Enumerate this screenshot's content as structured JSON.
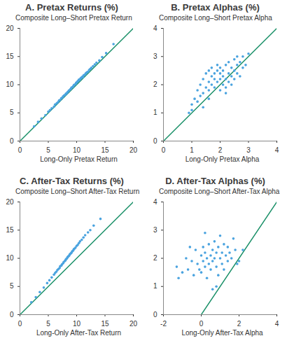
{
  "chart_data": [
    {
      "type": "scatter",
      "title": "A. Pretax Returns (%)",
      "ylabel": "Composite Long–Short Pretax Return",
      "xlabel": "Long-Only Pretax Return",
      "color": "#4aa3df",
      "xlim": [
        0,
        20
      ],
      "ylim": [
        0,
        20
      ],
      "xticks": [
        0,
        5,
        10,
        15,
        20
      ],
      "yticks": [
        0,
        5,
        10,
        15,
        20
      ],
      "x": [
        2.5,
        3.2,
        3.8,
        4.5,
        5.0,
        5.3,
        5.6,
        6.0,
        6.2,
        6.5,
        6.7,
        6.9,
        7.1,
        7.3,
        7.5,
        7.6,
        7.8,
        8.0,
        8.1,
        8.3,
        8.4,
        8.6,
        8.7,
        8.9,
        9.0,
        9.1,
        9.3,
        9.4,
        9.5,
        9.6,
        9.8,
        9.9,
        10.0,
        10.1,
        10.2,
        10.3,
        10.4,
        10.5,
        10.6,
        10.7,
        10.8,
        10.9,
        11.0,
        11.1,
        11.2,
        11.3,
        11.5,
        11.6,
        11.8,
        12.0,
        12.2,
        12.4,
        12.6,
        12.9,
        13.2,
        13.5,
        14.0,
        14.5,
        15.2,
        16.5
      ],
      "values": [
        2.6,
        3.4,
        4.0,
        4.6,
        5.2,
        5.5,
        5.8,
        6.1,
        6.5,
        6.7,
        6.9,
        7.2,
        7.3,
        7.6,
        7.7,
        7.9,
        8.1,
        8.2,
        8.4,
        8.5,
        8.7,
        8.9,
        9.0,
        9.2,
        9.3,
        9.5,
        9.6,
        9.7,
        9.9,
        10.0,
        10.1,
        10.3,
        10.4,
        10.5,
        10.6,
        10.7,
        10.9,
        10.8,
        11.0,
        11.1,
        11.2,
        11.3,
        11.4,
        11.3,
        11.6,
        11.7,
        11.8,
        12.0,
        12.2,
        12.3,
        12.6,
        12.8,
        13.0,
        13.3,
        13.6,
        13.9,
        14.3,
        14.9,
        15.6,
        17.2
      ]
    },
    {
      "type": "scatter",
      "title": "B. Pretax Alphas (%)",
      "ylabel": "Composite Long–Short Pretax Alpha",
      "xlabel": "Long-Only Pretax Alpha",
      "color": "#4aa3df",
      "xlim": [
        0,
        4
      ],
      "ylim": [
        0,
        4
      ],
      "xticks": [
        0,
        1,
        2,
        3,
        4
      ],
      "yticks": [
        0,
        1,
        2,
        3,
        4
      ],
      "x": [
        0.9,
        1.0,
        1.1,
        1.2,
        1.2,
        1.3,
        1.3,
        1.4,
        1.4,
        1.5,
        1.5,
        1.6,
        1.6,
        1.6,
        1.7,
        1.7,
        1.7,
        1.8,
        1.8,
        1.8,
        1.9,
        1.9,
        1.9,
        2.0,
        2.0,
        2.0,
        2.0,
        2.1,
        2.1,
        2.1,
        2.2,
        2.2,
        2.2,
        2.3,
        2.3,
        2.3,
        2.4,
        2.4,
        2.4,
        2.5,
        2.5,
        2.5,
        2.6,
        2.6,
        2.7,
        2.7,
        2.8,
        2.8,
        2.9,
        3.0,
        1.4,
        1.0,
        1.6,
        2.2,
        2.6
      ],
      "values": [
        1.0,
        1.3,
        1.5,
        1.4,
        1.8,
        1.6,
        2.0,
        1.7,
        2.2,
        1.9,
        2.4,
        1.8,
        2.1,
        2.5,
        2.0,
        2.3,
        2.6,
        1.9,
        2.2,
        2.4,
        2.1,
        2.5,
        2.7,
        1.8,
        2.2,
        2.4,
        2.6,
        2.0,
        2.3,
        2.5,
        1.9,
        2.2,
        2.7,
        2.1,
        2.4,
        2.8,
        2.0,
        2.3,
        2.6,
        2.2,
        2.5,
        2.9,
        2.4,
        2.7,
        2.3,
        2.8,
        2.6,
        3.0,
        2.7,
        3.1,
        1.2,
        1.1,
        1.5,
        1.7,
        3.0
      ]
    },
    {
      "type": "scatter",
      "title": "C. After-Tax Returns (%)",
      "ylabel": "Composite Long–Short After-Tax Return",
      "xlabel": "Long-Only After-Tax Return",
      "color": "#4aa3df",
      "xlim": [
        0,
        20
      ],
      "ylim": [
        0,
        20
      ],
      "xticks": [
        0,
        5,
        10,
        15,
        20
      ],
      "yticks": [
        0,
        5,
        10,
        15,
        20
      ],
      "x": [
        2.0,
        2.8,
        3.5,
        4.2,
        4.8,
        5.2,
        5.6,
        6.0,
        6.2,
        6.4,
        6.6,
        6.8,
        7.0,
        7.1,
        7.3,
        7.4,
        7.6,
        7.7,
        7.9,
        8.0,
        8.1,
        8.2,
        8.3,
        8.4,
        8.5,
        8.6,
        8.7,
        8.8,
        8.9,
        9.0,
        9.1,
        9.2,
        9.3,
        9.4,
        9.5,
        9.6,
        9.8,
        10.0,
        10.2,
        10.4,
        10.6,
        10.9,
        11.2,
        11.5,
        12.0,
        12.4,
        13.0,
        14.2
      ],
      "values": [
        2.2,
        3.1,
        4.0,
        4.8,
        5.6,
        6.1,
        6.6,
        7.1,
        7.4,
        7.6,
        7.9,
        8.1,
        8.3,
        8.6,
        8.7,
        8.9,
        9.1,
        9.3,
        9.5,
        9.6,
        9.8,
        9.9,
        10.0,
        10.2,
        10.3,
        10.4,
        10.5,
        10.7,
        10.8,
        10.9,
        11.0,
        11.2,
        11.3,
        11.4,
        11.6,
        11.7,
        11.9,
        12.2,
        12.4,
        12.7,
        13.0,
        13.3,
        13.7,
        14.1,
        14.6,
        15.0,
        15.8,
        17.0
      ]
    },
    {
      "type": "scatter",
      "title": "D. After-Tax Alphas (%)",
      "ylabel": "Composite Long–Short After-Tax Alpha",
      "xlabel": "Long-Only After-Tax Alpha",
      "color": "#4aa3df",
      "xlim": [
        -2,
        4
      ],
      "ylim": [
        0,
        4
      ],
      "xticks": [
        -2,
        0,
        2,
        4
      ],
      "yticks": [
        0,
        1,
        2,
        3,
        4
      ],
      "x": [
        -1.3,
        -1.2,
        -1.0,
        -0.8,
        -0.7,
        -0.5,
        -0.4,
        -0.3,
        -0.2,
        -0.1,
        0.0,
        0.0,
        0.1,
        0.1,
        0.2,
        0.2,
        0.3,
        0.3,
        0.4,
        0.4,
        0.5,
        0.5,
        0.6,
        0.6,
        0.7,
        0.7,
        0.8,
        0.8,
        0.9,
        0.9,
        1.0,
        1.0,
        1.1,
        1.1,
        1.2,
        1.2,
        1.3,
        1.4,
        1.4,
        1.5,
        1.6,
        1.7,
        1.8,
        2.0,
        2.2,
        0.6,
        0.8,
        -0.6,
        0.2,
        1.9
      ],
      "values": [
        1.7,
        1.3,
        1.5,
        2.0,
        1.6,
        1.9,
        1.4,
        2.3,
        1.8,
        1.6,
        2.1,
        1.5,
        1.9,
        2.4,
        1.7,
        2.2,
        1.3,
        2.0,
        1.8,
        2.5,
        2.1,
        1.6,
        2.3,
        1.9,
        2.0,
        2.6,
        1.7,
        2.2,
        1.4,
        2.4,
        2.0,
        2.8,
        1.8,
        2.2,
        2.5,
        1.6,
        2.1,
        1.9,
        2.4,
        2.2,
        2.0,
        2.7,
        2.3,
        1.9,
        2.3,
        0.9,
        1.0,
        2.4,
        2.9,
        1.8
      ]
    }
  ]
}
